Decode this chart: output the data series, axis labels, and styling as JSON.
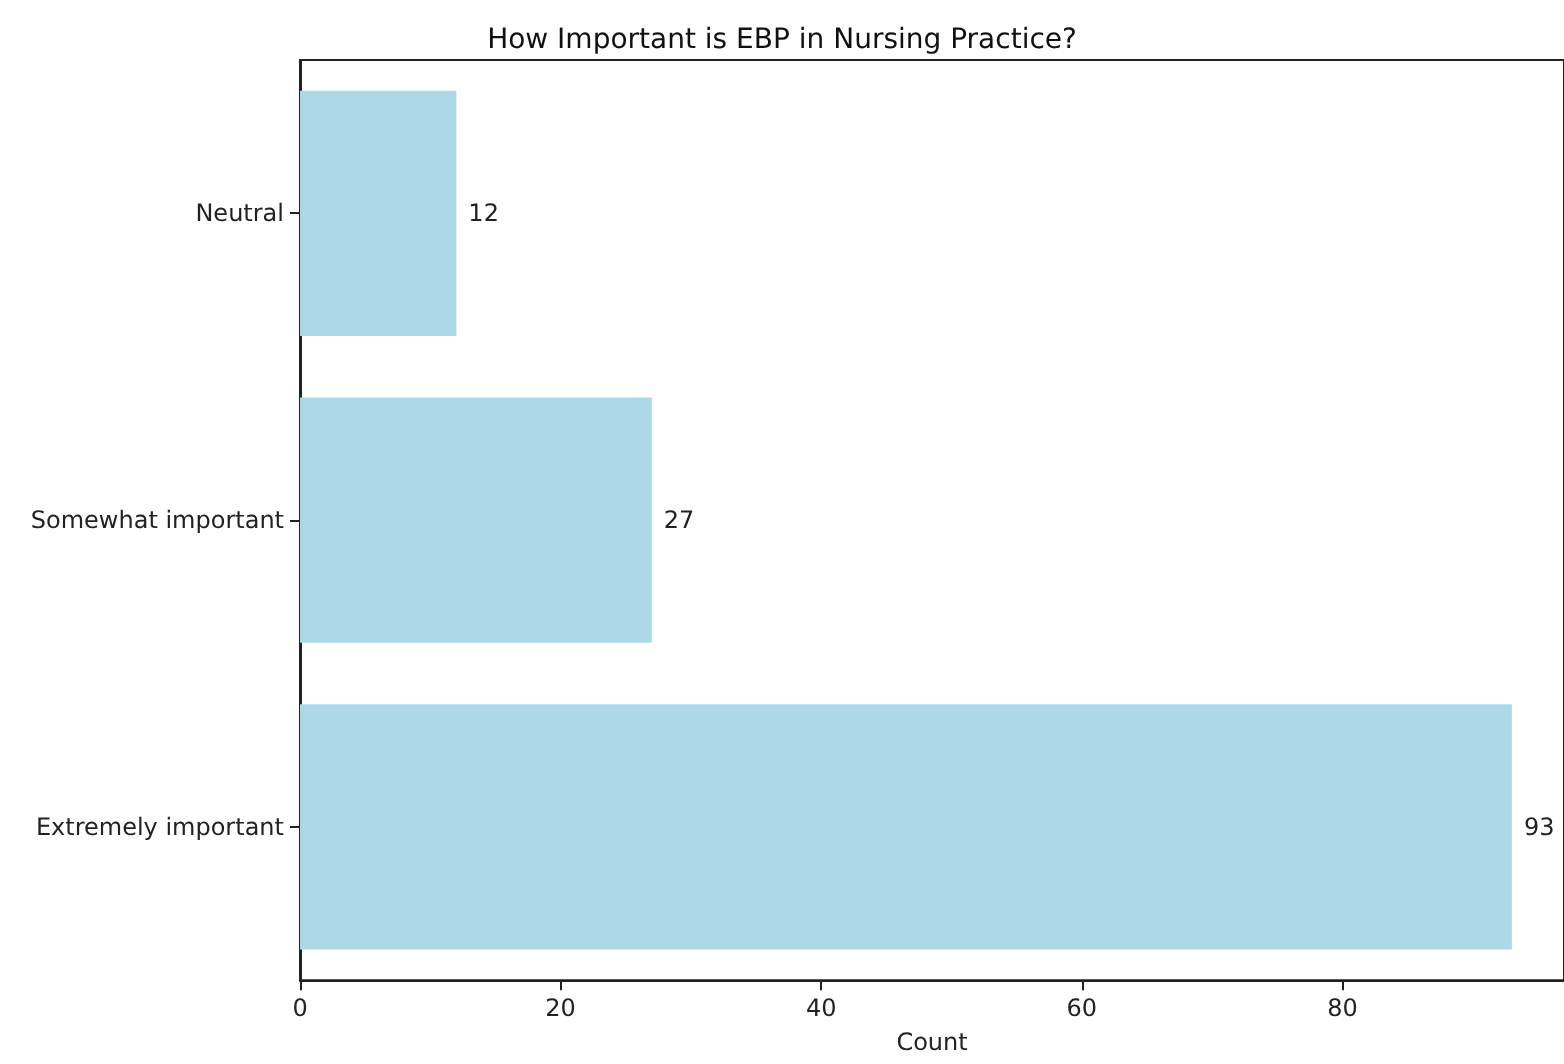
{
  "chart_data": {
    "type": "bar",
    "orientation": "horizontal",
    "title": "How Important is EBP in Nursing Practice?",
    "xlabel": "Count",
    "categories": [
      "Neutral",
      "Somewhat important",
      "Extremely important"
    ],
    "values": [
      12,
      27,
      93
    ],
    "color": "#add8e6",
    "data_labels": true,
    "xlim": [
      0,
      97
    ],
    "xticks": [
      0,
      20,
      40,
      60,
      80
    ],
    "grid": false
  }
}
